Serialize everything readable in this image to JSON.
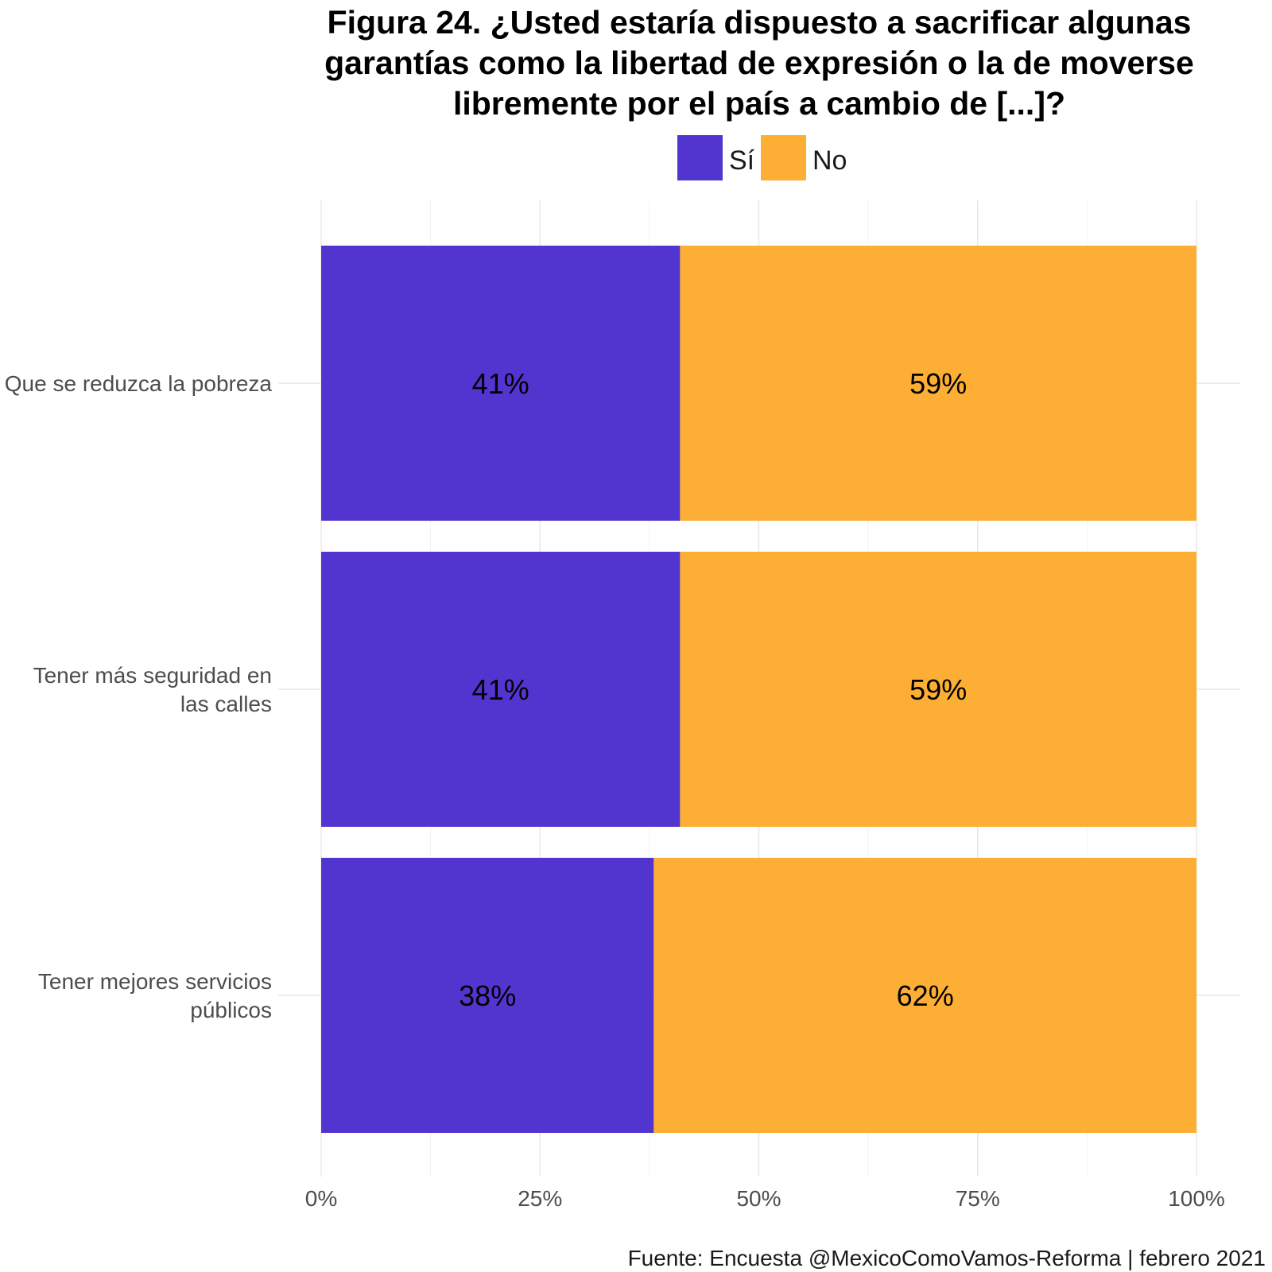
{
  "chart_data": {
    "type": "bar",
    "orientation": "horizontal",
    "stacked": true,
    "title_lines": [
      "Figura 24. ¿Usted estaría dispuesto a sacrificar algunas",
      "garantías como la libertad de expresión o la de moverse",
      "libremente por el país a cambio de [...]?"
    ],
    "categories": [
      [
        "Que se reduzca la pobreza"
      ],
      [
        "Tener más seguridad en",
        "las calles"
      ],
      [
        "Tener mejores servicios",
        "públicos"
      ]
    ],
    "series": [
      {
        "name": "Sí",
        "color": "#5235cf",
        "values": [
          41,
          41,
          38
        ],
        "labels": [
          "41%",
          "41%",
          "38%"
        ]
      },
      {
        "name": "No",
        "color": "#fdae34",
        "values": [
          59,
          59,
          62
        ],
        "labels": [
          "59%",
          "59%",
          "62%"
        ]
      }
    ],
    "xlim": [
      0,
      100
    ],
    "xticks": [
      0,
      25,
      50,
      75,
      100
    ],
    "xtick_labels": [
      "0%",
      "25%",
      "50%",
      "75%",
      "100%"
    ],
    "grid": true,
    "legend_position": "top",
    "caption": "Fuente: Encuesta @MexicoComoVamos-Reforma | febrero 2021"
  }
}
